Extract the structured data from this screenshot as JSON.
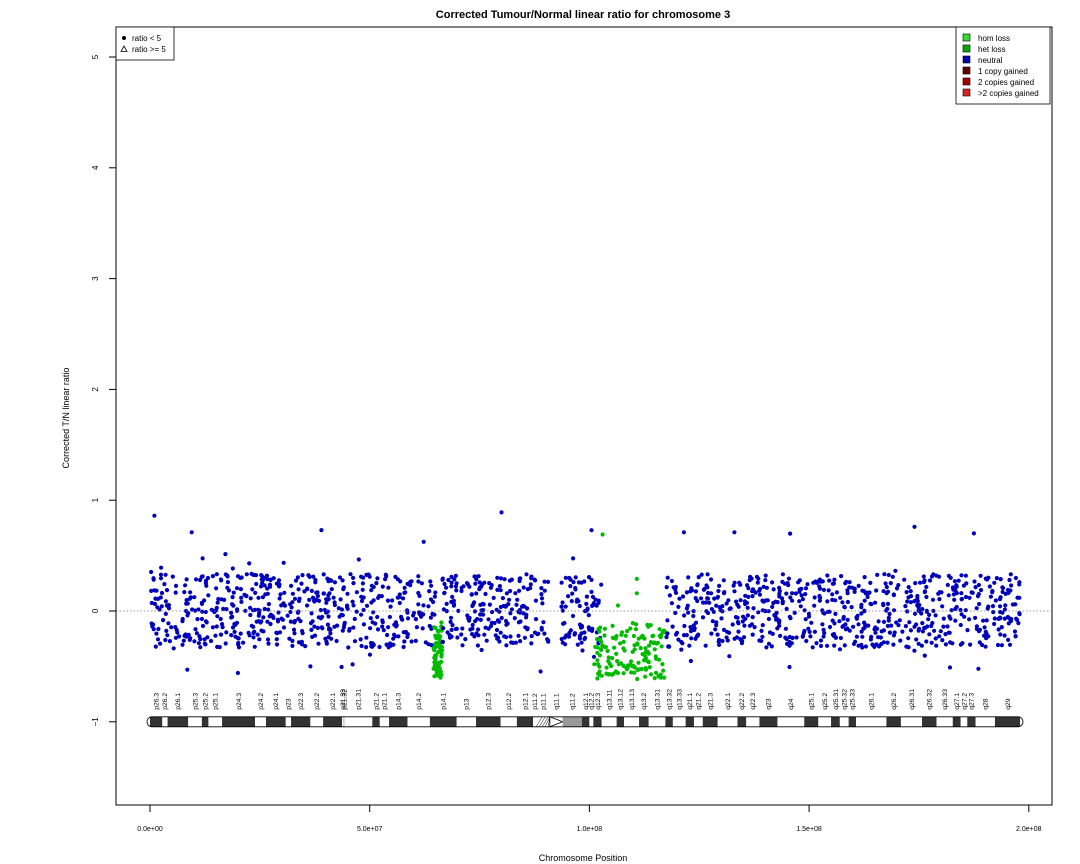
{
  "chart_data": {
    "type": "scatter",
    "title": "Corrected Tumour/Normal linear ratio for chromosome  3",
    "xlabel": "Chromosome Position",
    "ylabel": "Corrected T/N linear ratio",
    "xlim": [
      -8000000.0,
      202000000.0
    ],
    "ylim": [
      -1.8,
      5.3
    ],
    "x_ticks": [
      {
        "value": 0,
        "label": "0.0e+00"
      },
      {
        "value": 50000000,
        "label": "5.0e+07"
      },
      {
        "value": 100000000,
        "label": "1.0e+08"
      },
      {
        "value": 150000000,
        "label": "1.5e+08"
      },
      {
        "value": 200000000,
        "label": "2.0e+08"
      }
    ],
    "y_ticks": [
      {
        "value": -1,
        "label": "−1"
      },
      {
        "value": 0,
        "label": "0"
      },
      {
        "value": 1,
        "label": "1"
      },
      {
        "value": 2,
        "label": "2"
      },
      {
        "value": 3,
        "label": "3"
      },
      {
        "value": 4,
        "label": "4"
      },
      {
        "value": 5,
        "label": "5"
      }
    ],
    "reference_line": 0,
    "legend_shapes": {
      "placement": "top-left",
      "items": [
        {
          "shape": "dot",
          "label": "ratio < 5"
        },
        {
          "shape": "triangle",
          "label": "ratio >= 5"
        }
      ]
    },
    "legend_states": {
      "placement": "top-right",
      "items": [
        {
          "label": "hom loss",
          "color": "#33dd33"
        },
        {
          "label": "het loss",
          "color": "#00aa00"
        },
        {
          "label": "neutral",
          "color": "#0000aa"
        },
        {
          "label": "1 copy gained",
          "color": "#660000"
        },
        {
          "label": "2 copies gained",
          "color": "#aa0000"
        },
        {
          "label": ">2 copies gained",
          "color": "#dd2222"
        }
      ]
    },
    "segments": [
      {
        "start": 0,
        "end": 65000000,
        "state": "neutral",
        "color": "#0000bb",
        "center": 0.0,
        "spread": 0.35
      },
      {
        "start": 64500000,
        "end": 66500000,
        "state": "het loss",
        "color": "#00bb00",
        "center": -0.37,
        "spread": 0.25
      },
      {
        "start": 66500000,
        "end": 90700000,
        "state": "neutral",
        "color": "#0000bb",
        "center": 0.0,
        "spread": 0.35
      },
      {
        "start": 93600000,
        "end": 103000000,
        "state": "neutral",
        "color": "#0000bb",
        "center": 0.0,
        "spread": 0.33
      },
      {
        "start": 101000000,
        "end": 118000000,
        "state": "het loss",
        "color": "#00bb00",
        "center": -0.37,
        "spread": 0.26
      },
      {
        "start": 117500000,
        "end": 198000000,
        "state": "neutral",
        "color": "#0000bb",
        "center": 0.0,
        "spread": 0.35
      }
    ],
    "outliers": [
      {
        "x": 1000000,
        "y": 0.86
      },
      {
        "x": 80000000,
        "y": 0.89
      },
      {
        "x": 39000000,
        "y": 0.73
      },
      {
        "x": 9500000,
        "y": 0.71
      },
      {
        "x": 121500000,
        "y": 0.71
      },
      {
        "x": 133000000,
        "y": 0.71
      },
      {
        "x": 174000000,
        "y": 0.76
      },
      {
        "x": 187500000,
        "y": 0.7
      },
      {
        "x": 103000000,
        "y": 0.69
      },
      {
        "x": 20000000,
        "y": -0.56
      },
      {
        "x": 8500000,
        "y": -0.53
      },
      {
        "x": 36500000,
        "y": -0.5
      },
      {
        "x": 110800000,
        "y": 0.29
      },
      {
        "x": 110800000,
        "y": 0.16
      },
      {
        "x": 106500000,
        "y": 0.05
      }
    ],
    "ideogram": {
      "y": -1,
      "bands": [
        {
          "start": 0,
          "end": 2800000,
          "name": "p26.3",
          "stain": "gpos50"
        },
        {
          "start": 2800000,
          "end": 4000000,
          "name": "p26.2",
          "stain": "gneg"
        },
        {
          "start": 4000000,
          "end": 8700000,
          "name": "p26.1",
          "stain": "gpos50"
        },
        {
          "start": 8700000,
          "end": 11800000,
          "name": "p25.3",
          "stain": "gneg"
        },
        {
          "start": 11800000,
          "end": 13300000,
          "name": "p25.2",
          "stain": "gpos25"
        },
        {
          "start": 13300000,
          "end": 16400000,
          "name": "p25.1",
          "stain": "gneg"
        },
        {
          "start": 16400000,
          "end": 23900000,
          "name": "p24.3",
          "stain": "gpos100"
        },
        {
          "start": 23900000,
          "end": 26400000,
          "name": "p24.2",
          "stain": "gneg"
        },
        {
          "start": 26400000,
          "end": 30900000,
          "name": "p24.1",
          "stain": "gpos75"
        },
        {
          "start": 30900000,
          "end": 32100000,
          "name": "p23",
          "stain": "gneg"
        },
        {
          "start": 32100000,
          "end": 36500000,
          "name": "p22.3",
          "stain": "gpos50"
        },
        {
          "start": 36500000,
          "end": 39400000,
          "name": "p22.2",
          "stain": "gneg"
        },
        {
          "start": 39400000,
          "end": 43700000,
          "name": "p22.1",
          "stain": "gpos75"
        },
        {
          "start": 43700000,
          "end": 44100000,
          "name": "p21.33",
          "stain": "gneg"
        },
        {
          "start": 44100000,
          "end": 44200000,
          "name": "p21.32",
          "stain": "gpos50"
        },
        {
          "start": 44200000,
          "end": 50600000,
          "name": "p21.31",
          "stain": "gneg"
        },
        {
          "start": 50600000,
          "end": 52300000,
          "name": "p21.2",
          "stain": "gpos25"
        },
        {
          "start": 52300000,
          "end": 54400000,
          "name": "p21.1",
          "stain": "gneg"
        },
        {
          "start": 54400000,
          "end": 58600000,
          "name": "p14.3",
          "stain": "gpos50"
        },
        {
          "start": 58600000,
          "end": 63700000,
          "name": "p14.2",
          "stain": "gneg"
        },
        {
          "start": 63700000,
          "end": 69800000,
          "name": "p14.1",
          "stain": "gpos50"
        },
        {
          "start": 69800000,
          "end": 74200000,
          "name": "p13",
          "stain": "gneg"
        },
        {
          "start": 74200000,
          "end": 79800000,
          "name": "p12.3",
          "stain": "gpos75"
        },
        {
          "start": 79800000,
          "end": 83500000,
          "name": "p12.2",
          "stain": "gneg"
        },
        {
          "start": 83500000,
          "end": 87200000,
          "name": "p12.1",
          "stain": "gpos75"
        },
        {
          "start": 87200000,
          "end": 87900000,
          "name": "p11.2",
          "stain": "gneg"
        },
        {
          "start": 87900000,
          "end": 91000000,
          "name": "p11.1",
          "stain": "gvar"
        },
        {
          "start": 91000000,
          "end": 93900000,
          "name": "q11.1",
          "stain": "acen"
        },
        {
          "start": 93900000,
          "end": 98300000,
          "name": "q11.2",
          "stain": "stalk"
        },
        {
          "start": 98300000,
          "end": 100000000,
          "name": "q12.1",
          "stain": "gpos50"
        },
        {
          "start": 100000000,
          "end": 100900000,
          "name": "q12.2",
          "stain": "gneg"
        },
        {
          "start": 100900000,
          "end": 102800000,
          "name": "q12.3",
          "stain": "gpos50"
        },
        {
          "start": 102800000,
          "end": 106200000,
          "name": "q13.11",
          "stain": "gneg"
        },
        {
          "start": 106200000,
          "end": 107900000,
          "name": "q13.12",
          "stain": "gpos50"
        },
        {
          "start": 107900000,
          "end": 111300000,
          "name": "q13.13",
          "stain": "gneg"
        },
        {
          "start": 111300000,
          "end": 113500000,
          "name": "q13.2",
          "stain": "gpos50"
        },
        {
          "start": 113500000,
          "end": 117300000,
          "name": "q13.31",
          "stain": "gneg"
        },
        {
          "start": 117300000,
          "end": 119000000,
          "name": "q13.32",
          "stain": "gpos75"
        },
        {
          "start": 119000000,
          "end": 121900000,
          "name": "q13.33",
          "stain": "gneg"
        },
        {
          "start": 121900000,
          "end": 123800000,
          "name": "q21.1",
          "stain": "gpos50"
        },
        {
          "start": 123800000,
          "end": 125800000,
          "name": "q21.2",
          "stain": "gneg"
        },
        {
          "start": 125800000,
          "end": 129200000,
          "name": "q21.3",
          "stain": "gpos75"
        },
        {
          "start": 129200000,
          "end": 133700000,
          "name": "q22.1",
          "stain": "gneg"
        },
        {
          "start": 133700000,
          "end": 135700000,
          "name": "q22.2",
          "stain": "gpos50"
        },
        {
          "start": 135700000,
          "end": 138700000,
          "name": "q22.3",
          "stain": "gneg"
        },
        {
          "start": 138700000,
          "end": 142800000,
          "name": "q23",
          "stain": "gpos75"
        },
        {
          "start": 142800000,
          "end": 148900000,
          "name": "q24",
          "stain": "gneg"
        },
        {
          "start": 148900000,
          "end": 152100000,
          "name": "q25.1",
          "stain": "gpos100"
        },
        {
          "start": 152100000,
          "end": 155000000,
          "name": "q25.2",
          "stain": "gneg"
        },
        {
          "start": 155000000,
          "end": 157000000,
          "name": "q25.31",
          "stain": "gpos50"
        },
        {
          "start": 157000000,
          "end": 159000000,
          "name": "q25.32",
          "stain": "gneg"
        },
        {
          "start": 159000000,
          "end": 160700000,
          "name": "q25.33",
          "stain": "gpos50"
        },
        {
          "start": 160700000,
          "end": 167600000,
          "name": "q26.1",
          "stain": "gneg"
        },
        {
          "start": 167600000,
          "end": 170900000,
          "name": "q26.2",
          "stain": "gpos75"
        },
        {
          "start": 170900000,
          "end": 175700000,
          "name": "q26.31",
          "stain": "gneg"
        },
        {
          "start": 175700000,
          "end": 179000000,
          "name": "q26.32",
          "stain": "gpos75"
        },
        {
          "start": 179000000,
          "end": 182700000,
          "name": "q26.33",
          "stain": "gneg"
        },
        {
          "start": 182700000,
          "end": 184500000,
          "name": "q27.1",
          "stain": "gpos50"
        },
        {
          "start": 184500000,
          "end": 186000000,
          "name": "q27.2",
          "stain": "gneg"
        },
        {
          "start": 186000000,
          "end": 187900000,
          "name": "q27.3",
          "stain": "gpos75"
        },
        {
          "start": 187900000,
          "end": 192300000,
          "name": "q28",
          "stain": "gneg"
        },
        {
          "start": 192300000,
          "end": 198000000,
          "name": "q29",
          "stain": "gpos50"
        }
      ]
    },
    "grid": false
  }
}
